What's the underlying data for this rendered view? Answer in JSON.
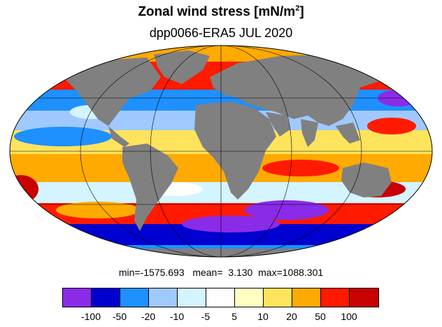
{
  "title_main": "Zonal wind stress [mN/m",
  "title_sup": "2",
  "title_end": "]",
  "subtitle": "dpp0066-ERA5  JUL 2020",
  "stats": {
    "min_label": "min=",
    "min": "-1575.693",
    "mean_label": "mean=",
    "mean": "3.130",
    "max_label": "max=",
    "max": "1088.301"
  },
  "colorbar": {
    "colors": [
      "#8a2be8",
      "#0000d0",
      "#1e90ff",
      "#9fc9ff",
      "#d4f4ff",
      "#ffffff",
      "#ffffc2",
      "#ffe35c",
      "#ffaa00",
      "#ff1a00",
      "#c80000"
    ],
    "labels": [
      "-100",
      "-50",
      "-20",
      "-10",
      "-5",
      "5",
      "10",
      "20",
      "50",
      "100"
    ]
  },
  "map": {
    "projection": "mollweide",
    "land_color": "#808080",
    "grid_color": "#000000"
  }
}
